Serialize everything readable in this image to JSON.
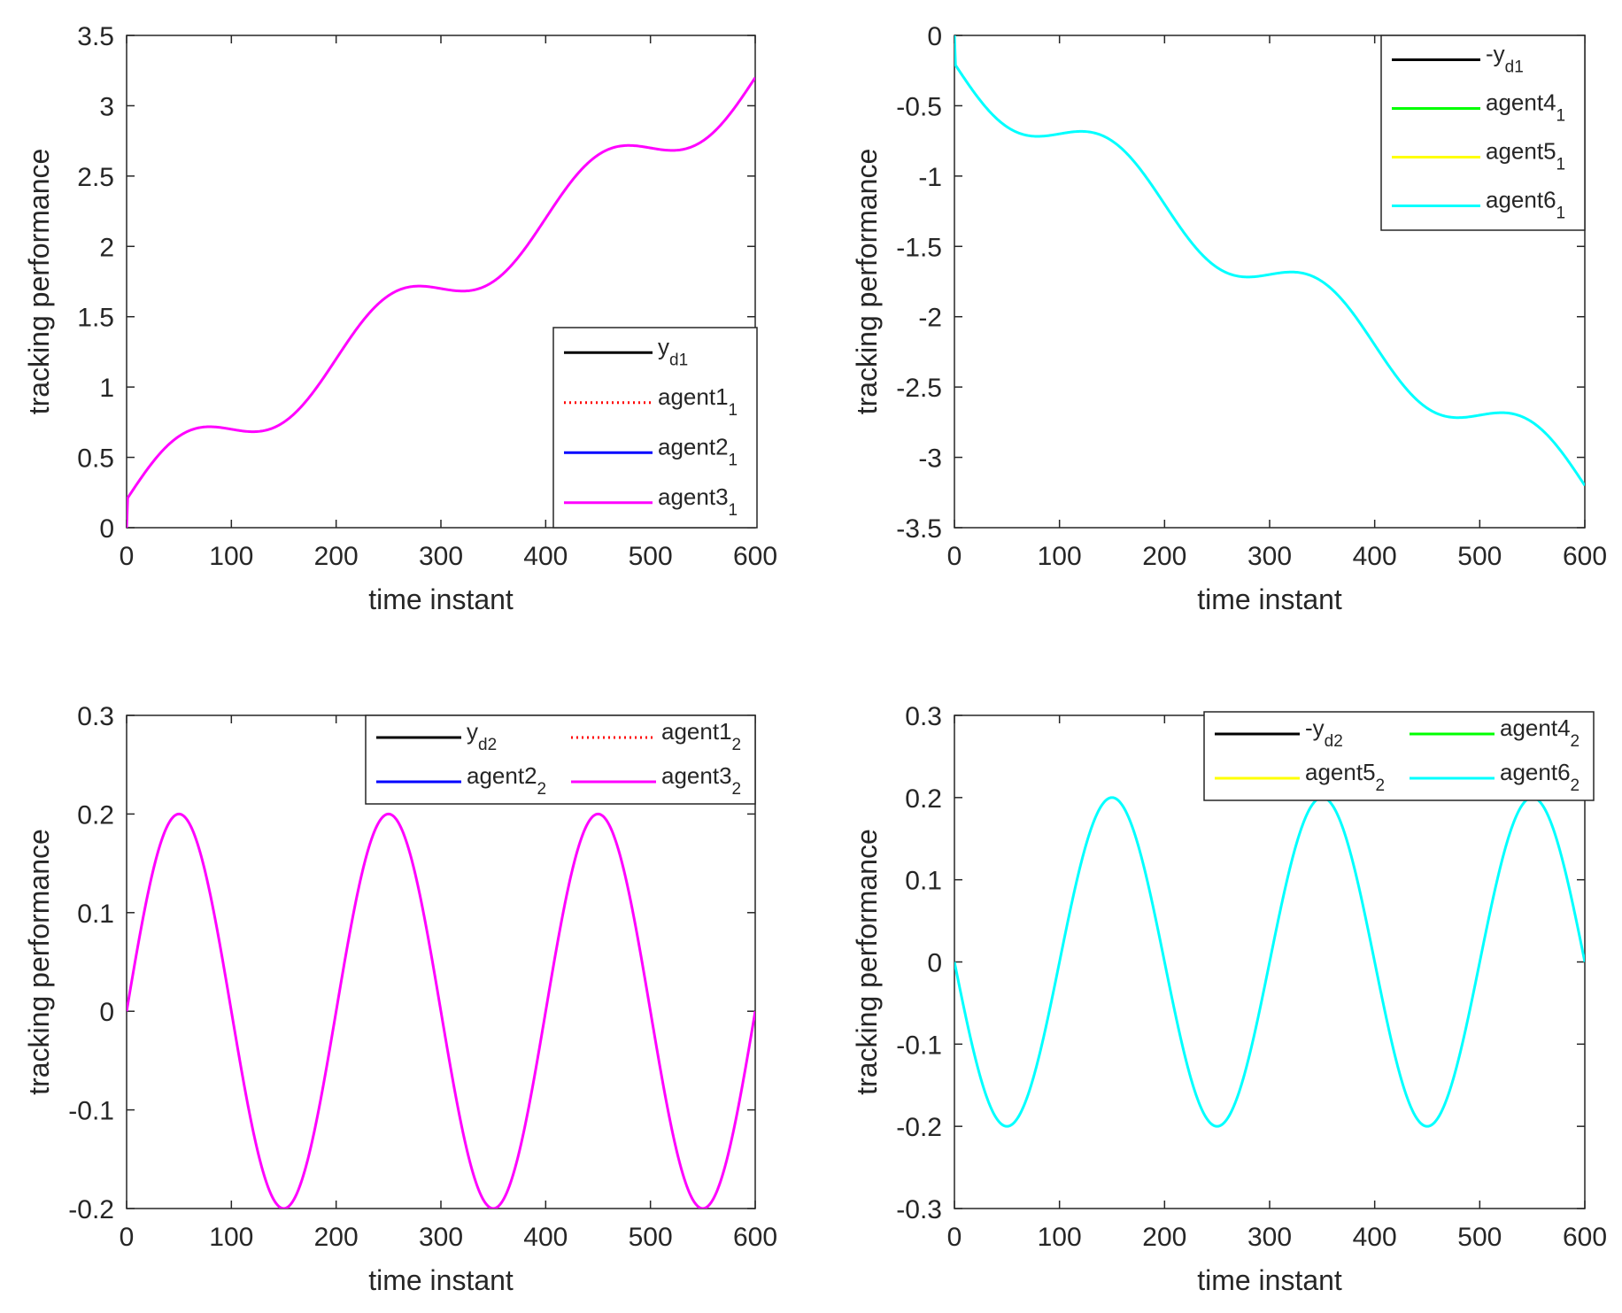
{
  "chart_data": [
    {
      "type": "line",
      "panel": "top-left",
      "xlabel": "time instant",
      "ylabel": "tracking performance",
      "xlim": [
        0,
        600
      ],
      "ylim": [
        0,
        3.5
      ],
      "xticks": [
        0,
        100,
        200,
        300,
        400,
        500,
        600
      ],
      "yticks": [
        0,
        0.5,
        1,
        1.5,
        2,
        2.5,
        3,
        3.5
      ],
      "ytick_labels": [
        "0",
        "0.5",
        "1",
        "1.5",
        "2",
        "2.5",
        "3",
        "3.5"
      ],
      "legend_position": "lower-right",
      "legend_columns": 1,
      "signal": {
        "form": "ramp_plus_sine",
        "offset": 0.2,
        "slope": 0.005,
        "amplitude": 0.2,
        "period": 200,
        "phase": 0,
        "sign": 1,
        "start_from_zero": true
      },
      "series": [
        {
          "name": "y",
          "sub": "d1",
          "color": "#000000",
          "dash": "solid",
          "visible": false
        },
        {
          "name": "agent1",
          "sub": "1",
          "color": "#ff0000",
          "dash": "dotted",
          "visible": false
        },
        {
          "name": "agent2",
          "sub": "1",
          "color": "#0000ff",
          "dash": "solid",
          "visible": false
        },
        {
          "name": "agent3",
          "sub": "1",
          "color": "#ff00ff",
          "dash": "solid",
          "visible": true
        }
      ]
    },
    {
      "type": "line",
      "panel": "top-right",
      "xlabel": "time instant",
      "ylabel": "tracking performance",
      "xlim": [
        0,
        600
      ],
      "ylim": [
        -3.5,
        0
      ],
      "xticks": [
        0,
        100,
        200,
        300,
        400,
        500,
        600
      ],
      "yticks": [
        -3.5,
        -3,
        -2.5,
        -2,
        -1.5,
        -1,
        -0.5,
        0
      ],
      "ytick_labels": [
        "-3.5",
        "-3",
        "-2.5",
        "-2",
        "-1.5",
        "-1",
        "-0.5",
        "0"
      ],
      "legend_position": "upper-right",
      "legend_columns": 1,
      "signal": {
        "form": "ramp_plus_sine",
        "offset": 0.2,
        "slope": 0.005,
        "amplitude": 0.2,
        "period": 200,
        "phase": 0,
        "sign": -1,
        "start_from_zero": true
      },
      "series": [
        {
          "name": "-y",
          "sub": "d1",
          "color": "#000000",
          "dash": "solid",
          "visible": false
        },
        {
          "name": "agent4",
          "sub": "1",
          "color": "#00ff00",
          "dash": "solid",
          "visible": false
        },
        {
          "name": "agent5",
          "sub": "1",
          "color": "#ffff00",
          "dash": "solid",
          "visible": false
        },
        {
          "name": "agent6",
          "sub": "1",
          "color": "#00ffff",
          "dash": "solid",
          "visible": true
        }
      ]
    },
    {
      "type": "line",
      "panel": "bottom-left",
      "xlabel": "time instant",
      "ylabel": "tracking performance",
      "xlim": [
        0,
        600
      ],
      "ylim": [
        -0.2,
        0.3
      ],
      "xticks": [
        0,
        100,
        200,
        300,
        400,
        500,
        600
      ],
      "yticks": [
        -0.2,
        -0.1,
        0,
        0.1,
        0.2,
        0.3
      ],
      "ytick_labels": [
        "-0.2",
        "-0.1",
        "0",
        "0.1",
        "0.2",
        "0.3"
      ],
      "legend_position": "upper-right",
      "legend_columns": 2,
      "signal": {
        "form": "sine",
        "offset": 0,
        "slope": 0,
        "amplitude": 0.2,
        "period": 200,
        "phase": 0,
        "sign": 1,
        "start_from_zero": false
      },
      "series": [
        {
          "name": "y",
          "sub": "d2",
          "color": "#000000",
          "dash": "solid",
          "visible": false
        },
        {
          "name": "agent1",
          "sub": "2",
          "color": "#ff0000",
          "dash": "dotted",
          "visible": false
        },
        {
          "name": "agent2",
          "sub": "2",
          "color": "#0000ff",
          "dash": "solid",
          "visible": false
        },
        {
          "name": "agent3",
          "sub": "2",
          "color": "#ff00ff",
          "dash": "solid",
          "visible": true
        }
      ]
    },
    {
      "type": "line",
      "panel": "bottom-right",
      "xlabel": "time instant",
      "ylabel": "tracking performance",
      "xlim": [
        0,
        600
      ],
      "ylim": [
        -0.3,
        0.3
      ],
      "xticks": [
        0,
        100,
        200,
        300,
        400,
        500,
        600
      ],
      "yticks": [
        -0.3,
        -0.2,
        -0.1,
        0,
        0.1,
        0.2,
        0.3
      ],
      "ytick_labels": [
        "-0.3",
        "-0.2",
        "-0.1",
        "0",
        "0.1",
        "0.2",
        "0.3"
      ],
      "legend_position": "upper-right",
      "legend_columns": 2,
      "signal": {
        "form": "sine",
        "offset": 0,
        "slope": 0,
        "amplitude": 0.2,
        "period": 200,
        "phase": 0,
        "sign": -1,
        "start_from_zero": false
      },
      "series": [
        {
          "name": "-y",
          "sub": "d2",
          "color": "#000000",
          "dash": "solid",
          "visible": false
        },
        {
          "name": "agent4",
          "sub": "2",
          "color": "#00ff00",
          "dash": "solid",
          "visible": false
        },
        {
          "name": "agent5",
          "sub": "2",
          "color": "#ffff00",
          "dash": "solid",
          "visible": false
        },
        {
          "name": "agent6",
          "sub": "2",
          "color": "#00ffff",
          "dash": "solid",
          "visible": true
        }
      ]
    }
  ]
}
